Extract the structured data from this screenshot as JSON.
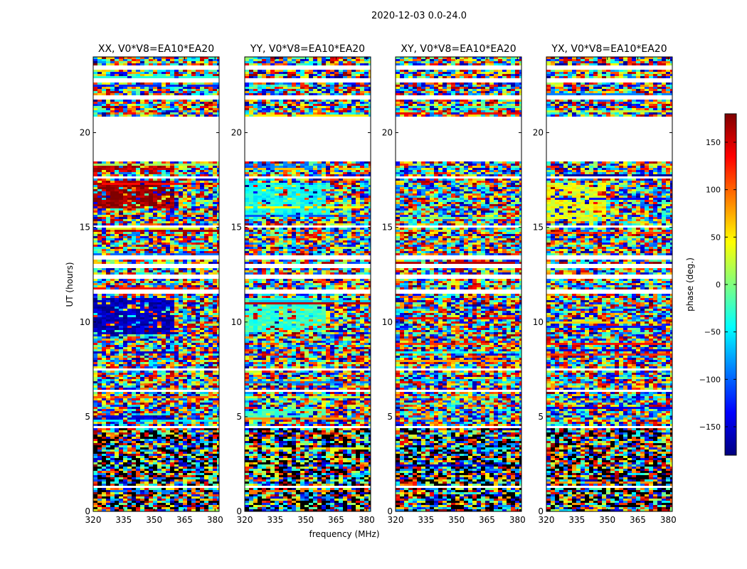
{
  "figure": {
    "title": "2020-12-03 0.0-24.0",
    "xlabel": "frequency (MHz)",
    "ylabel": "UT (hours)"
  },
  "colorbar": {
    "label": "phase (deg.)",
    "range": [
      -180,
      180
    ],
    "ticks": [
      150,
      100,
      50,
      0,
      -50,
      -100,
      -150
    ],
    "tick_labels": [
      "150",
      "100",
      "50",
      "0",
      "−50",
      "−100",
      "−150"
    ],
    "colormap": [
      "#00007f",
      "#0000ff",
      "#007fff",
      "#00ffff",
      "#7fff7f",
      "#ffff00",
      "#ff7f00",
      "#ff0000",
      "#7f0000"
    ]
  },
  "chart_data": [
    {
      "type": "heatmap",
      "title": "XX, V0*V8=EA10*EA20",
      "xlim": [
        320,
        382
      ],
      "ylim": [
        0,
        24
      ],
      "xticks": [
        320,
        335,
        350,
        365,
        380
      ],
      "yticks": [
        0,
        5,
        10,
        15,
        20
      ],
      "ytick_labels": [
        "0",
        "5",
        "10",
        "15",
        "20"
      ],
      "coherent": [
        {
          "t": [
            16.0,
            17.5
          ],
          "f": [
            320,
            360
          ],
          "phase": 170
        },
        {
          "t": [
            9.3,
            11.3
          ],
          "f": [
            320,
            360
          ],
          "phase": -160
        },
        {
          "t": [
            4.9,
            5.1
          ],
          "f": [
            320,
            360
          ],
          "phase": -150
        },
        {
          "t": [
            17.9,
            18.4
          ],
          "f": [
            320,
            360
          ],
          "phase": 160
        }
      ]
    },
    {
      "type": "heatmap",
      "title": "YY, V0*V8=EA10*EA20",
      "xlim": [
        320,
        382
      ],
      "ylim": [
        0,
        24
      ],
      "xticks": [
        320,
        335,
        350,
        365,
        380
      ],
      "yticks": [
        0,
        5,
        10,
        15,
        20
      ],
      "ytick_labels": [
        "0",
        "5",
        "10",
        "15",
        "20"
      ],
      "coherent": [
        {
          "t": [
            15.5,
            17.3
          ],
          "f": [
            320,
            360
          ],
          "phase": -40
        },
        {
          "t": [
            9.5,
            11.3
          ],
          "f": [
            320,
            360
          ],
          "phase": -25
        },
        {
          "t": [
            18.0,
            18.4
          ],
          "f": [
            320,
            360
          ],
          "phase": -90
        },
        {
          "t": [
            5.0,
            5.4
          ],
          "f": [
            320,
            360
          ],
          "phase": -20
        }
      ]
    },
    {
      "type": "heatmap",
      "title": "XY, V0*V8=EA10*EA20",
      "xlim": [
        320,
        382
      ],
      "ylim": [
        0,
        24
      ],
      "xticks": [
        320,
        335,
        350,
        365,
        380
      ],
      "yticks": [
        0,
        5,
        10,
        15,
        20
      ],
      "ytick_labels": [
        "0",
        "5",
        "10",
        "15",
        "20"
      ],
      "coherent": []
    },
    {
      "type": "heatmap",
      "title": "YX, V0*V8=EA10*EA20",
      "xlim": [
        320,
        382
      ],
      "ylim": [
        0,
        24
      ],
      "xticks": [
        320,
        335,
        350,
        365,
        380
      ],
      "yticks": [
        0,
        5,
        10,
        15,
        20
      ],
      "ytick_labels": [
        "0",
        "5",
        "10",
        "15",
        "20"
      ],
      "coherent": [
        {
          "t": [
            15.3,
            17.3
          ],
          "f": [
            320,
            350
          ],
          "phase": 40
        }
      ]
    }
  ],
  "gaps_hours": [
    [
      18.5,
      20.8
    ],
    [
      21.7,
      22.0
    ],
    [
      22.6,
      22.9
    ],
    [
      23.3,
      23.6
    ],
    [
      12.9,
      13.1
    ],
    [
      13.3,
      13.5
    ],
    [
      12.3,
      12.5
    ],
    [
      11.5,
      11.7
    ],
    [
      17.6,
      17.7
    ],
    [
      15.0,
      15.1
    ],
    [
      9.3,
      9.35
    ],
    [
      8.4,
      8.5
    ],
    [
      7.4,
      7.5
    ],
    [
      6.3,
      6.4
    ],
    [
      4.4,
      4.5
    ],
    [
      1.2,
      1.35
    ]
  ]
}
